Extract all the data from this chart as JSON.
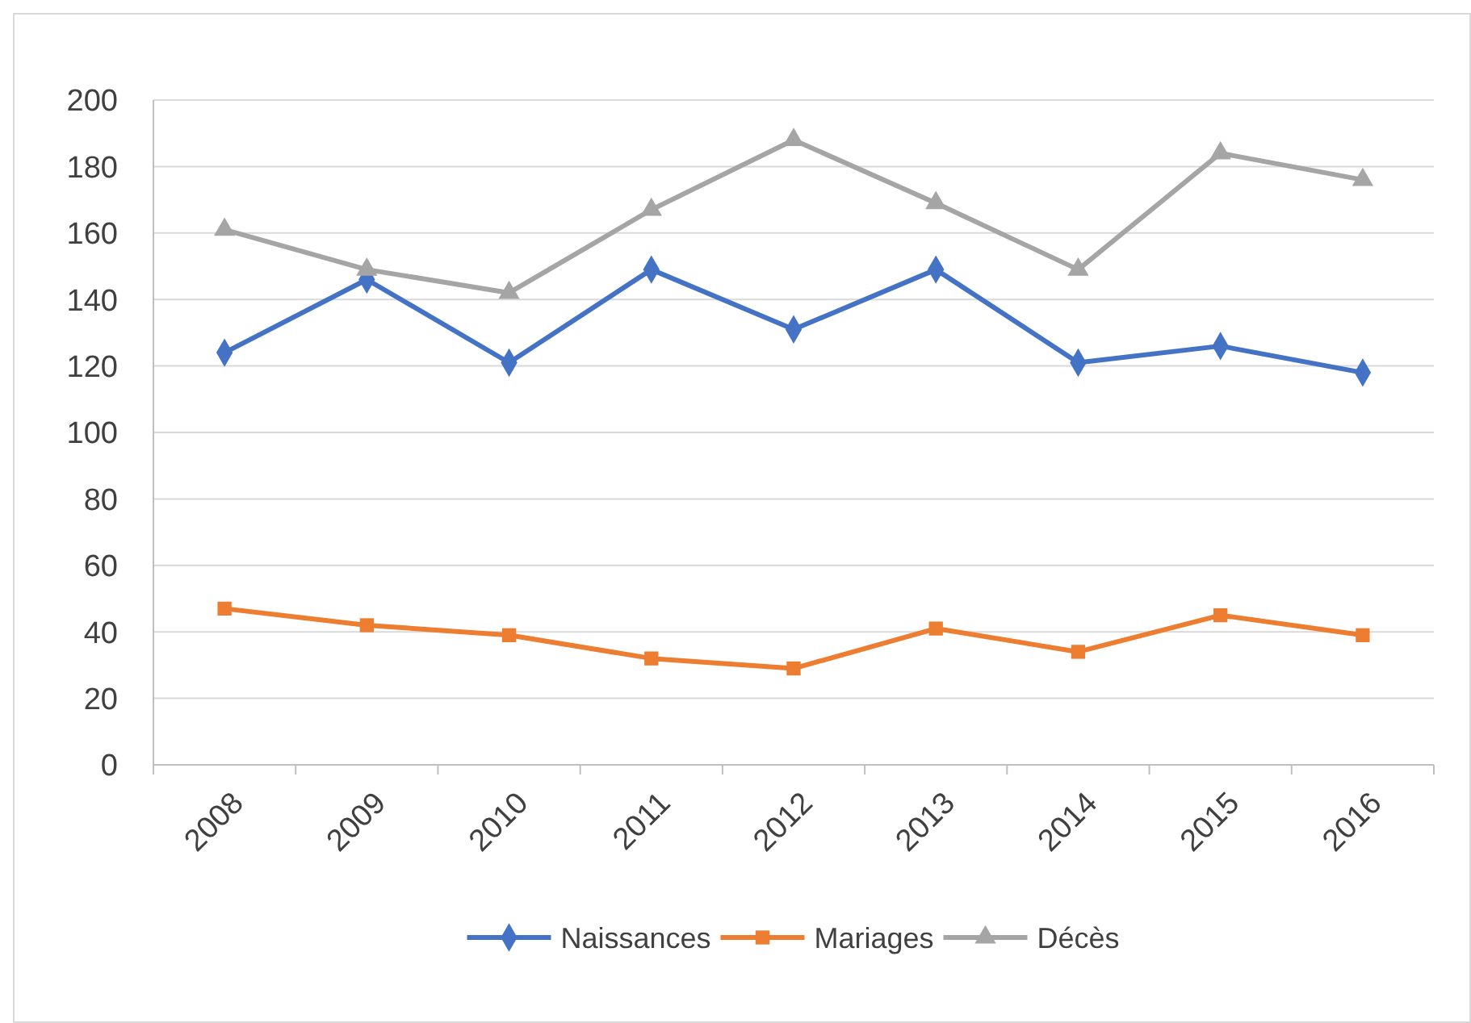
{
  "chart_data": {
    "type": "line",
    "categories": [
      "2008",
      "2009",
      "2010",
      "2011",
      "2012",
      "2013",
      "2014",
      "2015",
      "2016"
    ],
    "series": [
      {
        "name": "Naissances",
        "color": "#4472c4",
        "marker": "diamond",
        "values": [
          124,
          146,
          121,
          149,
          131,
          149,
          121,
          126,
          118
        ]
      },
      {
        "name": "Mariages",
        "color": "#ed7d31",
        "marker": "square",
        "values": [
          47,
          42,
          39,
          32,
          29,
          41,
          34,
          45,
          39
        ]
      },
      {
        "name": "Décès",
        "color": "#a5a5a5",
        "marker": "triangle",
        "values": [
          161,
          149,
          142,
          167,
          188,
          169,
          149,
          184,
          176
        ]
      }
    ],
    "ylim": [
      0,
      200
    ],
    "yticks": [
      0,
      20,
      40,
      60,
      80,
      100,
      120,
      140,
      160,
      180,
      200
    ],
    "grid": "y",
    "legend": "bottom",
    "line_style": "solid"
  }
}
